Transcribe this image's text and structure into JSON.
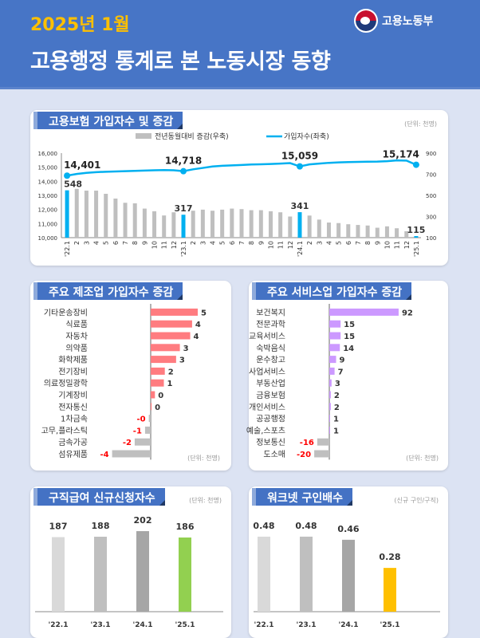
{
  "header": {
    "subtitle": "2025년 1월",
    "title": "고용행정 통계로 본 노동시장 동향",
    "ministry": "고용노동부",
    "bg_color": "#4775c6"
  },
  "chart_data": [
    {
      "type": "bar+line",
      "title": "고용보험 가입자수 및 증감",
      "unit": "(단위: 천명)",
      "legend": [
        "전년동월대비 증감(우축)",
        "가입자수(좌축)"
      ],
      "legend_placement": "top",
      "categories": [
        "'22.1",
        "2",
        "3",
        "4",
        "5",
        "6",
        "7",
        "8",
        "9",
        "10",
        "11",
        "12",
        "'23.1",
        "2",
        "3",
        "4",
        "5",
        "6",
        "7",
        "8",
        "9",
        "10",
        "11",
        "12",
        "'24.1",
        "2",
        "3",
        "4",
        "5",
        "6",
        "7",
        "8",
        "9",
        "10",
        "11",
        "12",
        "'25.1"
      ],
      "bar_series": {
        "name": "전년동월대비 증감(우축)",
        "axis": "right",
        "color": "#bfbfbf",
        "highlight_color": "#00b0f0",
        "values": [
          548,
          562,
          545,
          545,
          515,
          470,
          430,
          425,
          375,
          350,
          310,
          340,
          317,
          355,
          365,
          355,
          365,
          375,
          370,
          360,
          360,
          350,
          340,
          300,
          341,
          309,
          271,
          243,
          238,
          227,
          220,
          215,
          194,
          207,
          189,
          161,
          115
        ],
        "labeled": {
          "0": "548",
          "12": "317",
          "24": "341",
          "36": "115"
        }
      },
      "line_series": {
        "name": "가입자수(좌축)",
        "axis": "left",
        "color": "#00b0f0",
        "values": [
          14401,
          14520,
          14600,
          14650,
          14680,
          14700,
          14720,
          14740,
          14760,
          14780,
          14800,
          14780,
          14718,
          14850,
          14950,
          15050,
          15100,
          15130,
          15160,
          15190,
          15210,
          15230,
          15260,
          15290,
          15059,
          15200,
          15260,
          15310,
          15340,
          15360,
          15380,
          15390,
          15400,
          15430,
          15480,
          15470,
          15174
        ],
        "labeled": {
          "0": "14,401",
          "12": "14,718",
          "24": "15,059",
          "36": "15,174"
        }
      },
      "left_axis": {
        "ylim": [
          10000,
          16000
        ],
        "ticks": [
          "10,000",
          "11,000",
          "12,000",
          "13,000",
          "14,000",
          "15,000",
          "16,000"
        ]
      },
      "right_axis": {
        "ylim": [
          100,
          900
        ],
        "ticks": [
          "100",
          "300",
          "500",
          "700",
          "900"
        ]
      }
    },
    {
      "type": "hbar",
      "title": "주요 제조업 가입자수 증감",
      "unit": "(단위: 천명)",
      "pos_color": "#ff7c80",
      "neg_color": "#bfbfbf",
      "neg_label_color": "#ff0000",
      "categories": [
        "기타운송장비",
        "식료품",
        "자동차",
        "의약품",
        "화학제품",
        "전기장비",
        "의료정밀광학",
        "기계장비",
        "전자통신",
        "1차금속",
        "고무,플라스틱",
        "금속가공",
        "섬유제품"
      ],
      "values": [
        5.0,
        4.4,
        4.2,
        3.1,
        2.7,
        1.5,
        1.4,
        0.45,
        0.1,
        -0.2,
        -0.6,
        -1.7,
        -4.1
      ],
      "labels": [
        "5",
        "4",
        "4",
        "3",
        "3",
        "2",
        "1",
        "0",
        "0",
        "-0",
        "-1",
        "-2",
        "-4"
      ]
    },
    {
      "type": "hbar",
      "title": "주요 서비스업 가입자수 증감",
      "unit": "(단위: 천명)",
      "pos_color": "#cc99ff",
      "neg_color": "#bfbfbf",
      "neg_label_color": "#ff0000",
      "categories": [
        "보건복지",
        "전문과학",
        "교육서비스",
        "숙박음식",
        "운수창고",
        "사업서비스",
        "부동산업",
        "금융보험",
        "개인서비스",
        "공공행정",
        "예술,스포츠",
        "정보통신",
        "도소매"
      ],
      "values": [
        92,
        15,
        15,
        14,
        9,
        7,
        3,
        2,
        2,
        1,
        1,
        -16,
        -20
      ],
      "labels": [
        "92",
        "15",
        "15",
        "14",
        "9",
        "7",
        "3",
        "2",
        "2",
        "1",
        "1",
        "-16",
        "-20"
      ]
    },
    {
      "type": "bar",
      "title": "구직급여 신규신청자수",
      "unit": "(단위: 천명)",
      "categories": [
        "'22.1",
        "'23.1",
        "'24.1",
        "'25.1"
      ],
      "values": [
        187,
        188,
        202,
        186
      ],
      "labels": [
        "187",
        "188",
        "202",
        "186"
      ],
      "colors": [
        "#d9d9d9",
        "#bfbfbf",
        "#a6a6a6",
        "#92d050"
      ]
    },
    {
      "type": "bar",
      "title": "워크넷 구인배수",
      "unit": "(신규 구인/구직)",
      "categories": [
        "'22.1",
        "'23.1",
        "'24.1",
        "'25.1"
      ],
      "values": [
        0.48,
        0.48,
        0.46,
        0.28
      ],
      "labels": [
        "0.48",
        "0.48",
        "0.46",
        "0.28"
      ],
      "colors": [
        "#d9d9d9",
        "#bfbfbf",
        "#a6a6a6",
        "#ffc000"
      ]
    }
  ]
}
